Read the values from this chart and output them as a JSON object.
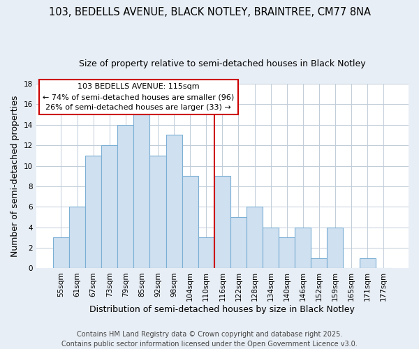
{
  "title_line1": "103, BEDELLS AVENUE, BLACK NOTLEY, BRAINTREE, CM77 8NA",
  "title_line2": "Size of property relative to semi-detached houses in Black Notley",
  "xlabel": "Distribution of semi-detached houses by size in Black Notley",
  "ylabel": "Number of semi-detached properties",
  "categories": [
    "55sqm",
    "61sqm",
    "67sqm",
    "73sqm",
    "79sqm",
    "85sqm",
    "92sqm",
    "98sqm",
    "104sqm",
    "110sqm",
    "116sqm",
    "122sqm",
    "128sqm",
    "134sqm",
    "140sqm",
    "146sqm",
    "152sqm",
    "159sqm",
    "165sqm",
    "171sqm",
    "177sqm"
  ],
  "values": [
    3,
    6,
    11,
    12,
    14,
    15,
    11,
    13,
    9,
    3,
    9,
    5,
    6,
    4,
    3,
    4,
    1,
    4,
    0,
    1,
    0
  ],
  "bar_color": "#cfe0f0",
  "bar_edge_color": "#7bafd4",
  "highlight_index": 10,
  "vline_label": "103 BEDELLS AVENUE: 115sqm",
  "annotation_line1": "← 74% of semi-detached houses are smaller (96)",
  "annotation_line2": "26% of semi-detached houses are larger (33) →",
  "vline_color": "#cc0000",
  "box_edge_color": "#cc0000",
  "ylim": [
    0,
    18
  ],
  "yticks": [
    0,
    2,
    4,
    6,
    8,
    10,
    12,
    14,
    16,
    18
  ],
  "footer": "Contains HM Land Registry data © Crown copyright and database right 2025.\nContains public sector information licensed under the Open Government Licence v3.0.",
  "bg_color": "#e8eef5",
  "plot_bg_color": "#ffffff",
  "grid_color": "#c0ccd8",
  "title_fontsize": 10.5,
  "subtitle_fontsize": 9,
  "axis_label_fontsize": 9,
  "tick_fontsize": 7.5,
  "footer_fontsize": 7,
  "annot_fontsize": 8
}
